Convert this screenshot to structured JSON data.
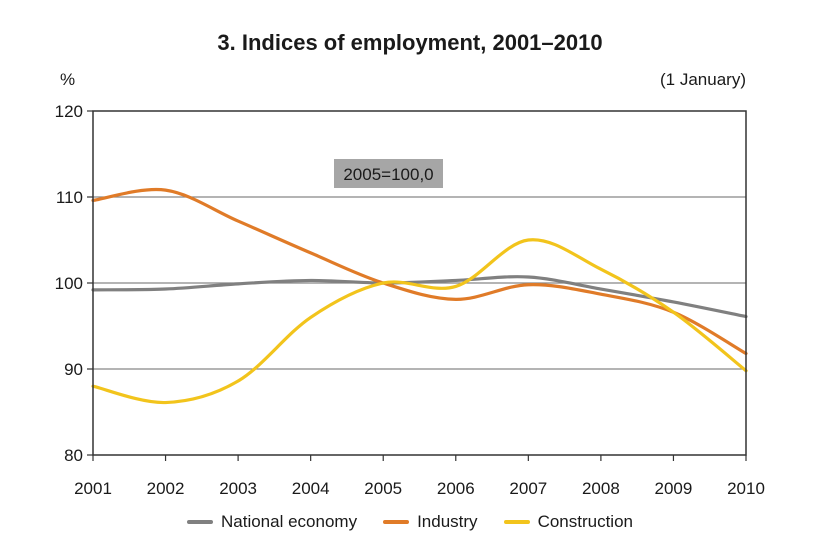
{
  "chart_data": {
    "type": "line",
    "title": "3.  Indices of employment, 2001–2010",
    "unit_label": "%",
    "note": "(1 January)",
    "base_label": "2005=100,0",
    "base_value": 100,
    "x": [
      "2001",
      "2002",
      "2003",
      "2004",
      "2005",
      "2006",
      "2007",
      "2008",
      "2009",
      "2010"
    ],
    "ylim": [
      80,
      120
    ],
    "yticks": [
      80,
      90,
      100,
      110,
      120
    ],
    "grid": true,
    "legend_position": "bottom",
    "series": [
      {
        "name": "National economy",
        "color": "#808080",
        "values": [
          99.2,
          99.3,
          99.9,
          100.3,
          100.0,
          100.3,
          100.7,
          99.3,
          97.8,
          96.1
        ]
      },
      {
        "name": "Industry",
        "color": "#e07b28",
        "values": [
          109.6,
          110.8,
          107.2,
          103.5,
          100.0,
          98.1,
          99.8,
          98.7,
          96.6,
          91.8
        ]
      },
      {
        "name": "Construction",
        "color": "#f2c41c",
        "values": [
          88.0,
          86.1,
          88.6,
          96.0,
          100.0,
          99.6,
          105.0,
          101.6,
          96.6,
          89.8
        ]
      }
    ]
  }
}
